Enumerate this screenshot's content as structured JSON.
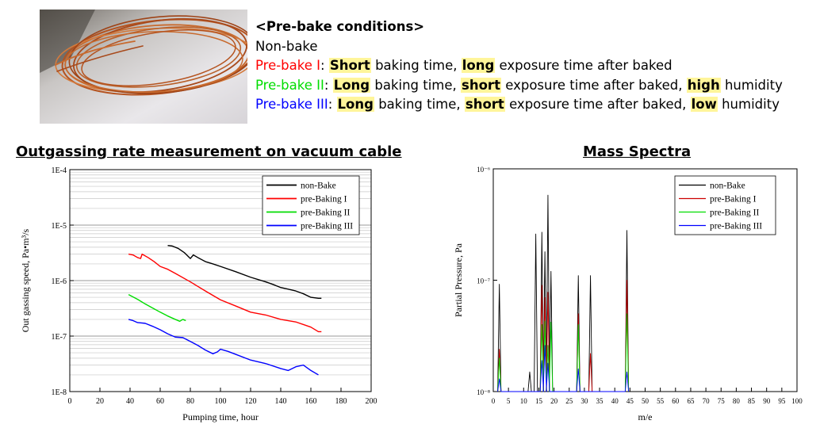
{
  "conditions": {
    "heading": "<Pre-bake conditions>",
    "items": [
      {
        "name": "Non-bake",
        "color": "#000000",
        "parts": []
      },
      {
        "name": "Pre-bake I",
        "color": "#ff0000",
        "parts": [
          {
            "text": ": ",
            "hl": false
          },
          {
            "text": "Short",
            "hl": true
          },
          {
            "text": " baking time, ",
            "hl": false
          },
          {
            "text": "long",
            "hl": true
          },
          {
            "text": " exposure time after baked",
            "hl": false
          }
        ]
      },
      {
        "name": "Pre-bake II",
        "color": "#00dd00",
        "parts": [
          {
            "text": ": ",
            "hl": false
          },
          {
            "text": "Long",
            "hl": true
          },
          {
            "text": " baking time, ",
            "hl": false
          },
          {
            "text": "short",
            "hl": true
          },
          {
            "text": " exposure time after baked, ",
            "hl": false
          },
          {
            "text": "high",
            "hl": true
          },
          {
            "text": " humidity",
            "hl": false
          }
        ]
      },
      {
        "name": "Pre-bake III",
        "color": "#0000ff",
        "parts": [
          {
            "text": ": ",
            "hl": false
          },
          {
            "text": "Long",
            "hl": true
          },
          {
            "text": " baking time, ",
            "hl": false
          },
          {
            "text": "short",
            "hl": true
          },
          {
            "text": " exposure time after baked, ",
            "hl": false
          },
          {
            "text": "low",
            "hl": true
          },
          {
            "text": " humidity",
            "hl": false
          }
        ]
      }
    ]
  },
  "panels": {
    "left_title": "Outgassing rate measurement on vacuum cable",
    "right_title": "Mass Spectra"
  },
  "chart_data": [
    {
      "type": "line",
      "title": "Outgassing rate measurement on vacuum cable",
      "xlabel": "Pumping time, hour",
      "ylabel": "Out gassing speed, Pa•m³/s",
      "xlim": [
        0,
        200
      ],
      "ylim": [
        1e-08,
        0.0001
      ],
      "yscale": "log",
      "xticks": [
        0,
        20,
        40,
        60,
        80,
        100,
        120,
        140,
        160,
        180,
        200
      ],
      "yticks": [
        {
          "v": 1e-08,
          "label": "1E-8"
        },
        {
          "v": 1e-07,
          "label": "1E-7"
        },
        {
          "v": 1e-06,
          "label": "1E-6"
        },
        {
          "v": 1e-05,
          "label": "1E-5"
        },
        {
          "v": 0.0001,
          "label": "1E-4"
        }
      ],
      "grid": true,
      "legend": "top-right",
      "series": [
        {
          "name": "non-Bake",
          "color": "#000000",
          "x": [
            65,
            68,
            72,
            76,
            80,
            82,
            85,
            90,
            95,
            100,
            110,
            120,
            130,
            135,
            140,
            145,
            150,
            155,
            160,
            165,
            167
          ],
          "y": [
            4.3e-06,
            4.2e-06,
            3.8e-06,
            3.2e-06,
            2.5e-06,
            2.9e-06,
            2.6e-06,
            2.2e-06,
            2e-06,
            1.8e-06,
            1.45e-06,
            1.15e-06,
            9.5e-07,
            8.5e-07,
            7.5e-07,
            7e-07,
            6.5e-07,
            5.8e-07,
            5e-07,
            4.8e-07,
            4.8e-07
          ]
        },
        {
          "name": "pre-Baking I",
          "color": "#ff0000",
          "x": [
            39,
            42,
            45,
            47,
            48,
            52,
            56,
            60,
            65,
            70,
            80,
            90,
            100,
            110,
            120,
            130,
            140,
            150,
            160,
            165,
            167
          ],
          "y": [
            3e-06,
            2.9e-06,
            2.6e-06,
            2.5e-06,
            3e-06,
            2.6e-06,
            2.2e-06,
            1.8e-06,
            1.6e-06,
            1.35e-06,
            9.5e-07,
            6.5e-07,
            4.5e-07,
            3.5e-07,
            2.7e-07,
            2.4e-07,
            2e-07,
            1.8e-07,
            1.45e-07,
            1.2e-07,
            1.2e-07
          ]
        },
        {
          "name": "pre-Baking II",
          "color": "#00dd00",
          "x": [
            39,
            45,
            50,
            55,
            60,
            65,
            70,
            73,
            75,
            77
          ],
          "y": [
            5.6e-07,
            4.6e-07,
            3.8e-07,
            3.2e-07,
            2.7e-07,
            2.3e-07,
            2e-07,
            1.85e-07,
            2e-07,
            1.9e-07
          ]
        },
        {
          "name": "pre-Baking III",
          "color": "#0000ff",
          "x": [
            39,
            42,
            45,
            50,
            55,
            60,
            65,
            70,
            75,
            80,
            85,
            90,
            95,
            98,
            100,
            105,
            110,
            120,
            130,
            140,
            145,
            150,
            155,
            160,
            165
          ],
          "y": [
            2e-07,
            1.9e-07,
            1.75e-07,
            1.7e-07,
            1.5e-07,
            1.3e-07,
            1.1e-07,
            9.6e-08,
            9.4e-08,
            8e-08,
            6.8e-08,
            5.6e-08,
            4.8e-08,
            5.2e-08,
            5.8e-08,
            5.3e-08,
            4.7e-08,
            3.7e-08,
            3.2e-08,
            2.6e-08,
            2.4e-08,
            2.8e-08,
            3e-08,
            2.4e-08,
            2e-08
          ]
        }
      ]
    },
    {
      "type": "line",
      "title": "Mass Spectra",
      "xlabel": "m/e",
      "ylabel": "Partial Pressure, Pa",
      "xlim": [
        0,
        100
      ],
      "ylim": [
        1e-08,
        1e-06
      ],
      "yscale": "log",
      "xticks": [
        0,
        5,
        10,
        15,
        20,
        25,
        30,
        35,
        40,
        45,
        50,
        55,
        60,
        65,
        70,
        75,
        80,
        85,
        90,
        95,
        100
      ],
      "yticks": [
        {
          "v": 1e-08,
          "label": "10⁻⁸"
        },
        {
          "v": 1e-07,
          "label": "10⁻⁷"
        },
        {
          "v": 1e-06,
          "label": "10⁻⁶"
        }
      ],
      "grid": false,
      "legend": "top-right",
      "series": [
        {
          "name": "non-Bake",
          "color": "#000000",
          "peaks": [
            [
              2,
              9.2e-08
            ],
            [
              12,
              1.5e-08
            ],
            [
              14,
              2.6e-07
            ],
            [
              16,
              2.7e-07
            ],
            [
              17,
              1.8e-07
            ],
            [
              18,
              5.8e-07
            ],
            [
              19,
              1.2e-07
            ],
            [
              28,
              1.1e-07
            ],
            [
              32,
              1.1e-07
            ],
            [
              44,
              2.8e-07
            ]
          ]
        },
        {
          "name": "pre-Baking I",
          "color": "#cc0000",
          "peaks": [
            [
              2,
              2.4e-08
            ],
            [
              16,
              9e-08
            ],
            [
              17,
              7e-08
            ],
            [
              18,
              7.8e-08
            ],
            [
              28,
              5e-08
            ],
            [
              32,
              2.2e-08
            ],
            [
              44,
              1e-07
            ]
          ]
        },
        {
          "name": "pre-Baking II",
          "color": "#00dd00",
          "peaks": [
            [
              2,
              2e-08
            ],
            [
              16,
              4e-08
            ],
            [
              17,
              4.3e-08
            ],
            [
              18,
              2.6e-08
            ],
            [
              19,
              4.2e-08
            ],
            [
              28,
              4e-08
            ],
            [
              44,
              5e-08
            ]
          ]
        },
        {
          "name": "pre-Baking III",
          "color": "#0000ff",
          "peaks": [
            [
              2,
              1.3e-08
            ],
            [
              16,
              1.9e-08
            ],
            [
              17,
              2.6e-08
            ],
            [
              18,
              1.8e-08
            ],
            [
              28,
              1.6e-08
            ],
            [
              44,
              1.5e-08
            ]
          ]
        }
      ]
    }
  ]
}
